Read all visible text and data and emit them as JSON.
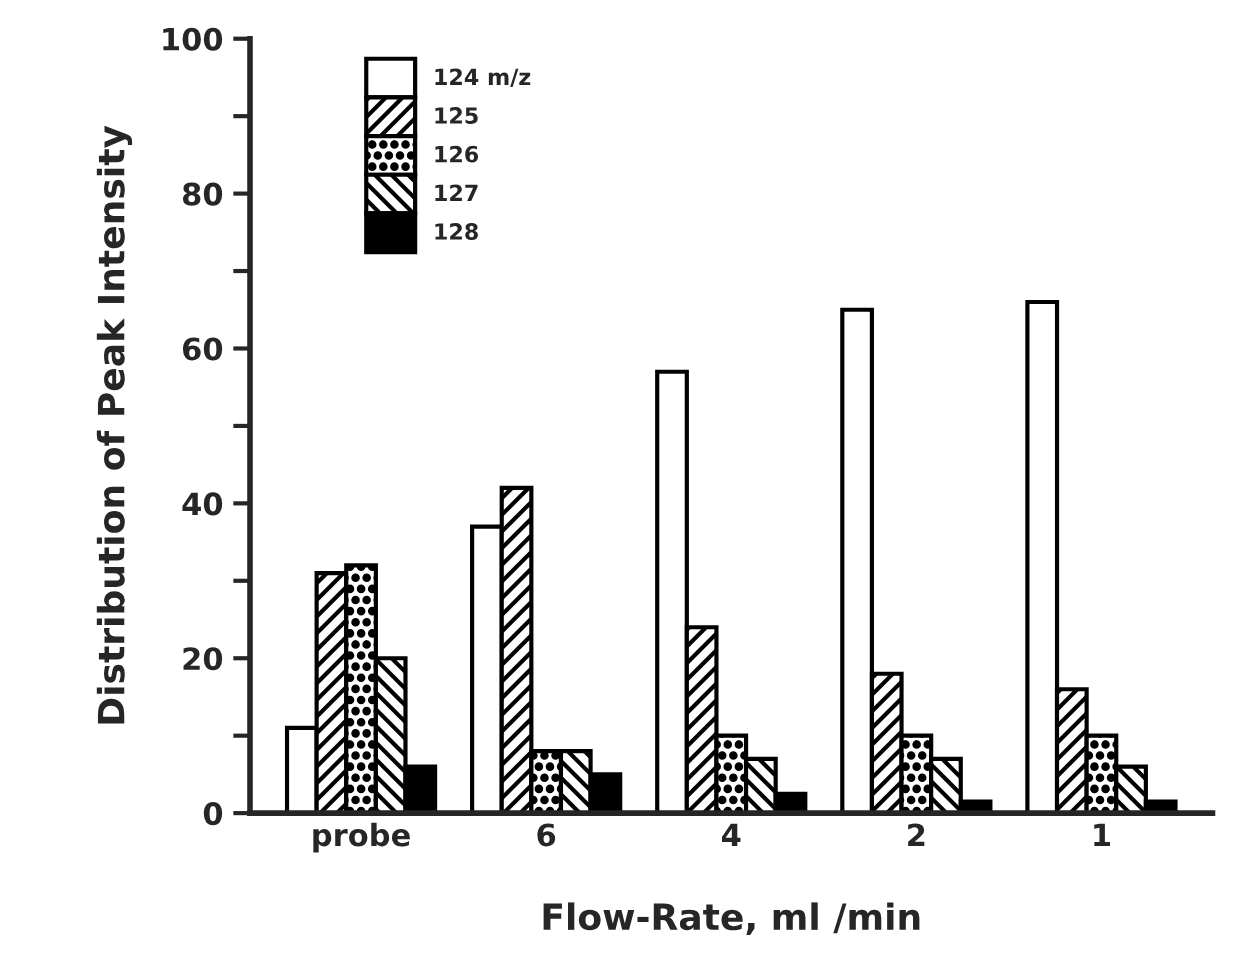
{
  "chart_data": {
    "type": "bar",
    "xlabel": "Flow-Rate, ml /min",
    "ylabel": "Distribution of Peak Intensity",
    "categories": [
      "probe",
      "6",
      "4",
      "2",
      "1"
    ],
    "series": [
      {
        "name": "124 m/z",
        "color": "#ffffff",
        "values": [
          11,
          37,
          57,
          65,
          66
        ]
      },
      {
        "name": "125",
        "color": "#000000",
        "values": [
          31,
          42,
          24,
          18,
          16
        ]
      },
      {
        "name": "126",
        "color": "#000000",
        "values": [
          32,
          8,
          10,
          10,
          10
        ]
      },
      {
        "name": "127",
        "color": "#000000",
        "values": [
          20,
          8,
          7,
          7,
          6
        ]
      },
      {
        "name": "128",
        "color": "#000000",
        "values": [
          6,
          5,
          2.5,
          1.5,
          1.5
        ]
      }
    ],
    "ylim": [
      0,
      100
    ],
    "yticks": [
      0,
      {
        "value": 10,
        "label": null
      },
      20,
      {
        "value": 30,
        "label": null
      },
      40,
      {
        "value": 50,
        "label": null
      },
      60,
      {
        "value": 70,
        "label": null
      },
      80,
      {
        "value": 90,
        "label": null
      },
      100
    ],
    "grid": false,
    "legend": "top left"
  }
}
